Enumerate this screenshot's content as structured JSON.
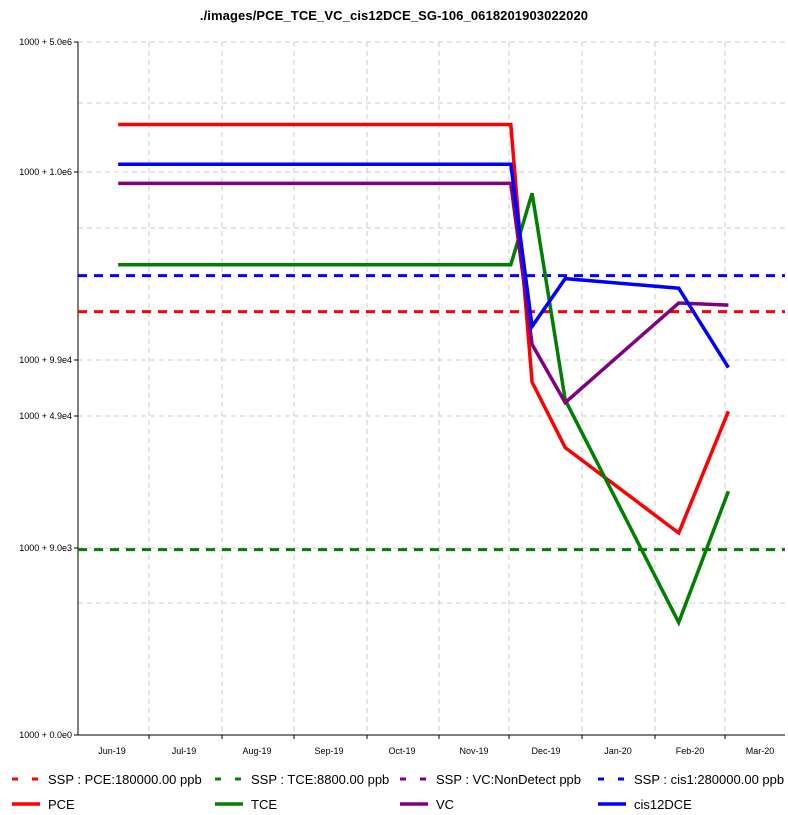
{
  "chart_data": {
    "type": "line",
    "title": "./images/PCE_TCE_VC_cis12DCE_SG-106_0618201903022020",
    "y_scale": "log-like",
    "y_tick_labels": [
      {
        "label": "1000 + 5.0e6",
        "value": 5000000
      },
      {
        "label": "1000 + 1.0e6",
        "value": 1000000
      },
      {
        "label": "1000 + 9.9e4",
        "value": 99000
      },
      {
        "label": "1000 + 4.9e4",
        "value": 49000
      },
      {
        "label": "1000 + 9.0e3",
        "value": 9000
      },
      {
        "label": "1000 + 0.0e0",
        "value": 0
      }
    ],
    "x_tick_labels": [
      "Jun-19",
      "Jul-19",
      "Aug-19",
      "Sep-19",
      "Oct-19",
      "Nov-19",
      "Dec-19",
      "Jan-20",
      "Feb-20",
      "Mar-20"
    ],
    "grid": true,
    "x": [
      "2019-06-18",
      "2019-12-01",
      "2019-12-10",
      "2019-12-24",
      "2020-02-10",
      "2020-03-02"
    ],
    "series": [
      {
        "name": "PCE",
        "color": "#ff0000",
        "values": [
          1800000,
          1800000,
          75000,
          33000,
          11000,
          52000
        ]
      },
      {
        "name": "TCE",
        "color": "#008000",
        "values": [
          320000,
          320000,
          770000,
          60000,
          3000,
          19000
        ]
      },
      {
        "name": "VC",
        "color": "#800080",
        "values": [
          870000,
          870000,
          120000,
          58000,
          200000,
          195000
        ]
      },
      {
        "name": "cis12DCE",
        "color": "#0000ff",
        "values": [
          1100000,
          1100000,
          150000,
          270000,
          240000,
          90000
        ]
      }
    ],
    "thresholds": [
      {
        "name": "SSP : PCE:180000.00 ppb",
        "color": "#ff0000",
        "value": 180000
      },
      {
        "name": "SSP : TCE:8800.00 ppb",
        "color": "#008000",
        "value": 8800
      },
      {
        "name": "SSP : VC:NonDetect ppb",
        "color": "#800080",
        "value": null
      },
      {
        "name": "SSP : cis1:280000.00 ppb",
        "color": "#0000ff",
        "value": 280000
      }
    ],
    "legend_position": "bottom"
  }
}
